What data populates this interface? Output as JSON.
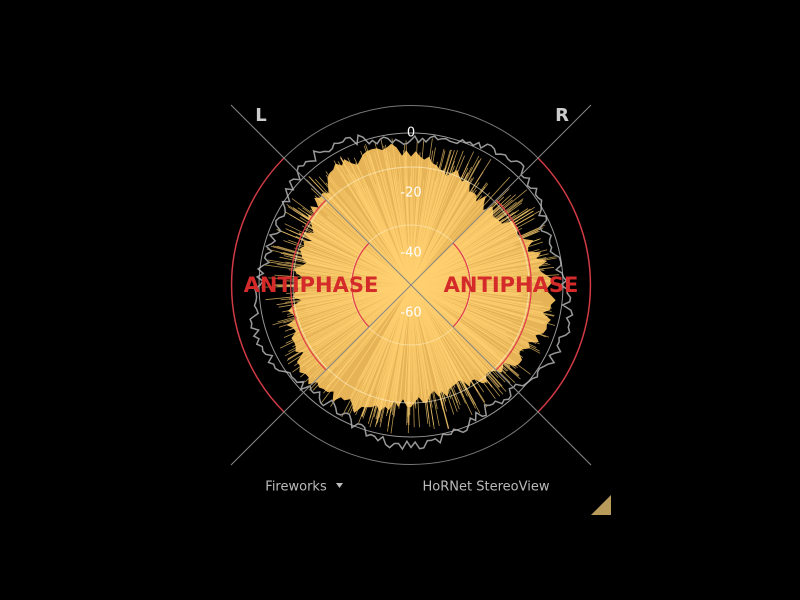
{
  "header": {
    "left_channel": "L",
    "right_channel": "R"
  },
  "scale": {
    "rings": [
      "0",
      "-20",
      "-40",
      "-60"
    ]
  },
  "warnings": {
    "left": "ANTIPHASE",
    "right": "ANTIPHASE"
  },
  "footer": {
    "mode": "Fireworks",
    "product": "HoRNet StereoView"
  }
}
